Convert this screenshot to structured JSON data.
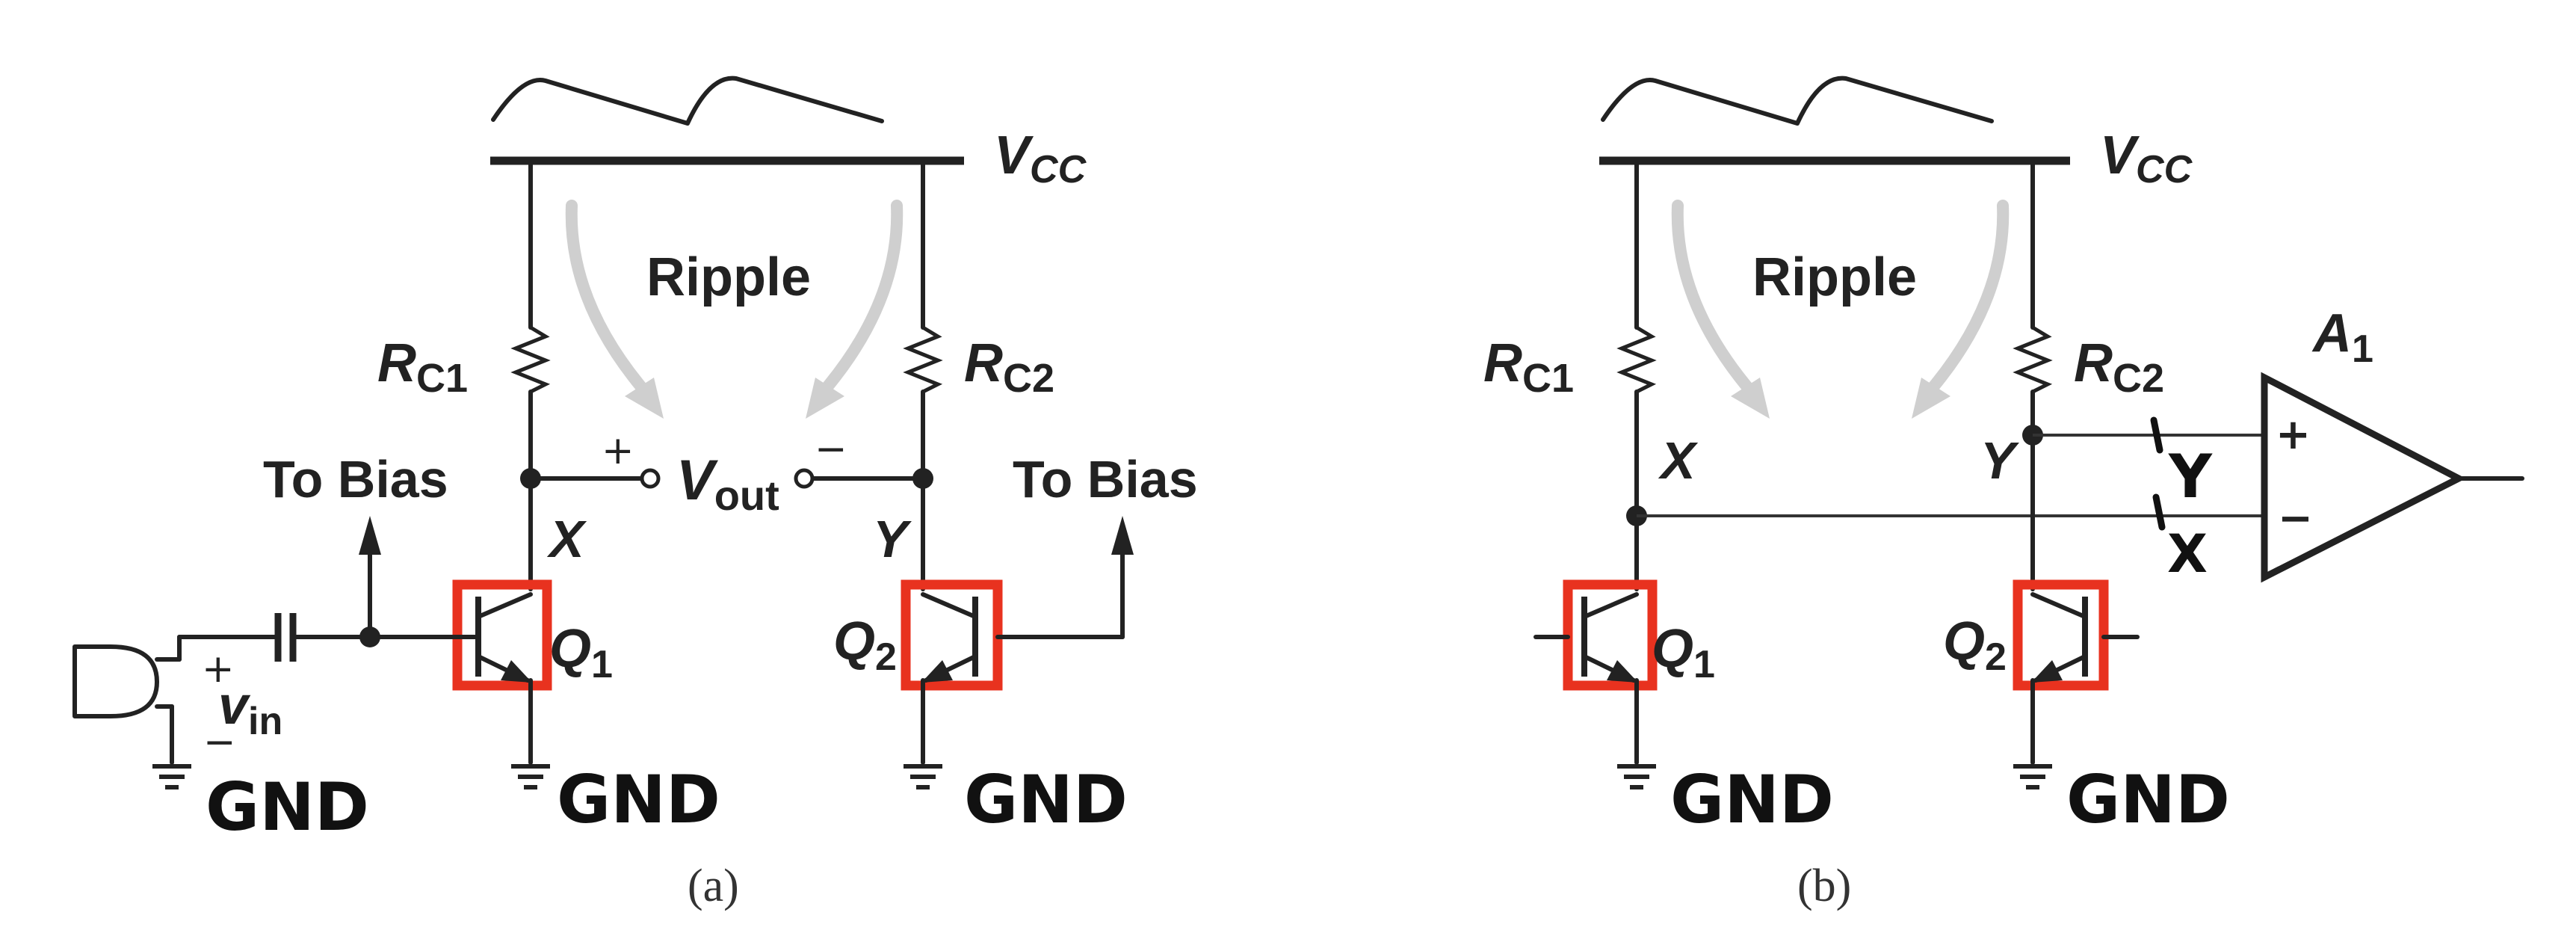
{
  "diagram_a": {
    "supply": {
      "name": "V",
      "sub": "CC"
    },
    "ripple": "Ripple",
    "rc1": {
      "name": "R",
      "sub": "C1"
    },
    "rc2": {
      "name": "R",
      "sub": "C2"
    },
    "to_bias_left": "To Bias",
    "to_bias_right": "To Bias",
    "vout": {
      "name": "V",
      "sub": "out"
    },
    "plus": "+",
    "minus": "−",
    "node_x": "X",
    "node_y": "Y",
    "q1": {
      "name": "Q",
      "sub": "1"
    },
    "q2": {
      "name": "Q",
      "sub": "2"
    },
    "vin": {
      "name": "v",
      "sub": "in"
    },
    "gnd1": "GND",
    "gnd2": "GND",
    "gnd3": "GND",
    "caption": "(a)"
  },
  "diagram_b": {
    "supply": {
      "name": "V",
      "sub": "CC"
    },
    "ripple": "Ripple",
    "rc1": {
      "name": "R",
      "sub": "C1"
    },
    "rc2": {
      "name": "R",
      "sub": "C2"
    },
    "amp": {
      "name": "A",
      "sub": "1"
    },
    "amp_plus": "+",
    "amp_minus": "−",
    "node_x": "X",
    "node_y": "Y",
    "tag_y": "Y",
    "tag_x": "X",
    "q1": {
      "name": "Q",
      "sub": "1"
    },
    "q2": {
      "name": "Q",
      "sub": "2"
    },
    "gnd1": "GND",
    "gnd2": "GND",
    "caption": "(b)"
  },
  "colors": {
    "highlight": "#e8321f",
    "ripple_arrow": "#cfcfcf",
    "wire": "#222222"
  }
}
